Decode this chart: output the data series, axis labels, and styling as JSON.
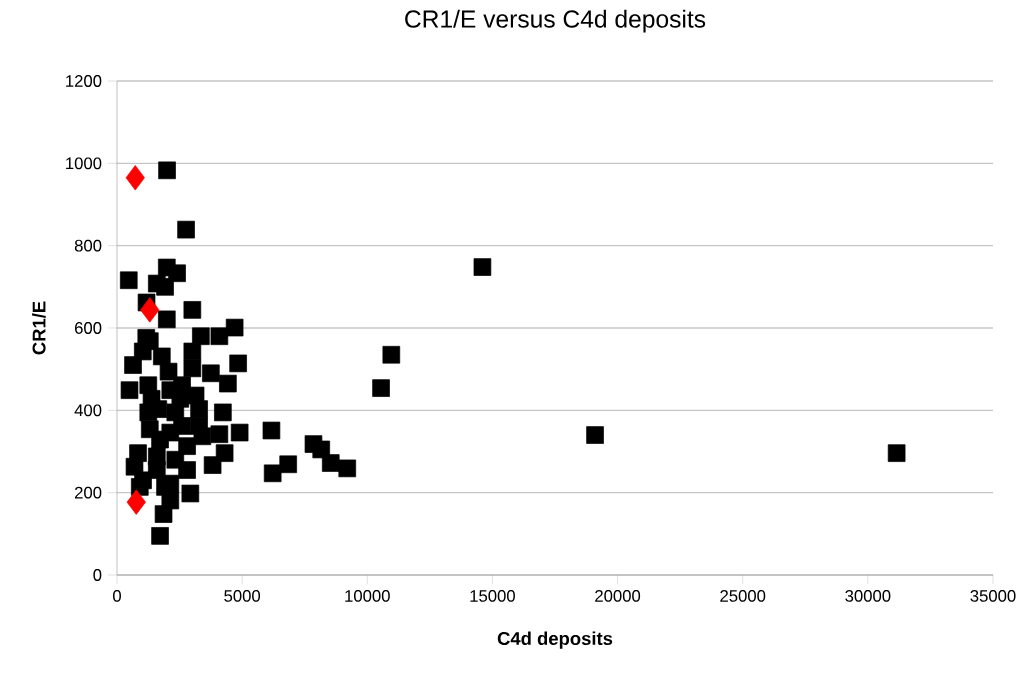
{
  "chart_data": {
    "type": "scatter",
    "title": "CR1/E versus C4d deposits",
    "xlabel": "C4d deposits",
    "ylabel": "CR1/E",
    "xlim": [
      0,
      35000
    ],
    "xticks": [
      0,
      5000,
      10000,
      15000,
      20000,
      25000,
      30000,
      35000
    ],
    "ylim": [
      0,
      1200
    ],
    "yticks": [
      0,
      200,
      400,
      600,
      800,
      1000,
      1200
    ],
    "grid": "y",
    "series": [
      {
        "color": "#000000",
        "marker": "square",
        "x": [
          2000,
          2760,
          470,
          1990,
          2400,
          1590,
          1920,
          1180,
          3010,
          1990,
          1310,
          3350,
          4090,
          4700,
          4840,
          640,
          1790,
          3010,
          3750,
          4430,
          500,
          1250,
          2130,
          3140,
          4230,
          1250,
          2330,
          3280,
          4900,
          4090,
          3410,
          1310,
          2130,
          2800,
          4300,
          840,
          1590,
          2330,
          3820,
          700,
          1590,
          2800,
          910,
          2130,
          2930,
          2130,
          1860,
          1720,
          1040,
          1920,
          1720,
          2600,
          3280,
          1380,
          2600,
          2060,
          1030,
          2530,
          1650,
          1170,
          3010,
          6170,
          6220,
          6840,
          7850,
          8160,
          8540,
          9200,
          10550,
          10960,
          14600,
          19100,
          31150
        ],
        "values": [
          983,
          839,
          716,
          747,
          733,
          708,
          700,
          662,
          644,
          621,
          568,
          580,
          580,
          601,
          514,
          510,
          531,
          543,
          490,
          465,
          449,
          461,
          449,
          436,
          395,
          395,
          395,
          403,
          346,
          342,
          337,
          354,
          346,
          313,
          296,
          296,
          288,
          280,
          267,
          263,
          255,
          255,
          214,
          222,
          198,
          181,
          148,
          95,
          230,
          214,
          329,
          461,
          362,
          428,
          362,
          494,
          543,
          428,
          403,
          576,
          502,
          351,
          247,
          269,
          318,
          305,
          272,
          259,
          454,
          535,
          748,
          340,
          296
        ]
      },
      {
        "color": "#ff0000",
        "marker": "diamond",
        "x": [
          730,
          1310,
          770
        ],
        "values": [
          965,
          644,
          177
        ]
      }
    ]
  }
}
